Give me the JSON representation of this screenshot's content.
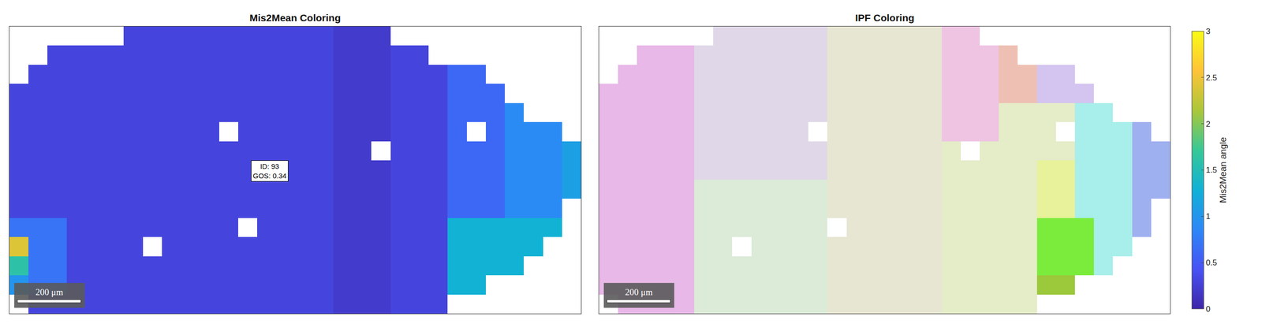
{
  "chart_data": [
    {
      "type": "heatmap",
      "title": "Mis2Mean Coloring",
      "x": [
        30,
        90,
        150,
        210,
        270,
        330,
        390,
        450,
        510,
        570,
        630,
        690,
        750,
        810,
        870,
        930,
        990,
        1050,
        1110,
        1170,
        1230,
        1290,
        1350,
        1410,
        1470,
        1530,
        1590,
        1650,
        1710,
        1770
      ],
      "y": [
        870,
        810,
        750,
        690,
        630,
        570,
        510,
        450,
        390,
        330,
        270,
        210,
        150,
        90,
        30
      ],
      "xlim": [
        0,
        1800
      ],
      "ylim": [
        0,
        900
      ],
      "tick_labels": false,
      "z": [
        [
          null,
          null,
          null,
          null,
          null,
          null,
          0.3,
          0.3,
          0.3,
          0.3,
          0.3,
          0.3,
          0.3,
          0.3,
          0.3,
          0.3,
          0.3,
          0.2,
          0.2,
          0.2,
          null,
          null,
          null,
          null,
          null,
          null,
          null,
          null,
          null,
          null
        ],
        [
          null,
          null,
          0.3,
          0.3,
          0.3,
          0.3,
          0.3,
          0.3,
          0.3,
          0.3,
          0.3,
          0.3,
          0.3,
          0.3,
          0.3,
          0.3,
          0.3,
          0.2,
          0.2,
          0.2,
          0.3,
          0.3,
          null,
          null,
          null,
          null,
          null,
          null,
          null,
          null
        ],
        [
          null,
          0.3,
          0.3,
          0.3,
          0.3,
          0.3,
          0.3,
          0.3,
          0.3,
          0.3,
          0.3,
          0.3,
          0.3,
          0.3,
          0.3,
          0.3,
          0.3,
          0.2,
          0.2,
          0.2,
          0.3,
          0.3,
          0.3,
          0.6,
          0.6,
          null,
          null,
          null,
          null,
          null
        ],
        [
          0.3,
          0.3,
          0.3,
          0.3,
          0.3,
          0.3,
          0.3,
          0.3,
          0.3,
          0.3,
          0.3,
          0.3,
          0.3,
          0.3,
          0.3,
          0.3,
          0.3,
          0.2,
          0.2,
          0.2,
          0.3,
          0.3,
          0.3,
          0.6,
          0.6,
          0.6,
          null,
          null,
          null,
          null
        ],
        [
          0.3,
          0.3,
          0.3,
          0.3,
          0.3,
          0.3,
          0.3,
          0.3,
          0.3,
          0.3,
          0.3,
          0.3,
          0.3,
          0.3,
          0.3,
          0.3,
          0.3,
          0.2,
          0.2,
          0.2,
          0.3,
          0.3,
          0.3,
          0.6,
          0.6,
          0.6,
          0.9,
          null,
          null,
          null
        ],
        [
          0.3,
          0.3,
          0.3,
          0.3,
          0.3,
          0.3,
          0.3,
          0.3,
          0.3,
          0.3,
          0.3,
          null,
          0.3,
          0.3,
          0.3,
          0.3,
          0.3,
          0.2,
          0.2,
          0.2,
          0.3,
          0.3,
          0.3,
          0.6,
          null,
          0.6,
          0.9,
          0.9,
          0.9,
          null
        ],
        [
          0.3,
          0.3,
          0.3,
          0.3,
          0.3,
          0.3,
          0.3,
          0.3,
          0.3,
          0.3,
          0.3,
          0.3,
          0.3,
          0.3,
          0.3,
          0.3,
          0.3,
          0.2,
          0.2,
          null,
          0.3,
          0.3,
          0.3,
          0.6,
          0.6,
          0.6,
          0.9,
          0.9,
          0.9,
          1.1
        ],
        [
          0.3,
          0.3,
          0.3,
          0.3,
          0.3,
          0.3,
          0.3,
          0.3,
          0.3,
          0.3,
          0.3,
          0.3,
          0.3,
          0.3,
          0.3,
          0.3,
          0.3,
          0.2,
          0.2,
          0.2,
          0.3,
          0.3,
          0.3,
          0.6,
          0.6,
          0.6,
          0.9,
          0.9,
          0.9,
          1.1
        ],
        [
          0.3,
          0.3,
          0.3,
          0.3,
          0.3,
          0.3,
          0.3,
          0.3,
          0.3,
          0.3,
          0.3,
          0.3,
          0.3,
          0.3,
          0.3,
          0.3,
          0.3,
          0.2,
          0.2,
          0.2,
          0.3,
          0.3,
          0.3,
          0.6,
          0.6,
          0.6,
          0.9,
          0.9,
          0.9,
          1.1
        ],
        [
          0.3,
          0.3,
          0.3,
          0.3,
          0.3,
          0.3,
          0.3,
          0.3,
          0.3,
          0.3,
          0.3,
          0.3,
          0.3,
          0.3,
          0.3,
          0.3,
          0.3,
          0.2,
          0.2,
          0.2,
          0.3,
          0.3,
          0.3,
          0.6,
          0.6,
          0.6,
          0.9,
          0.9,
          0.9,
          null
        ],
        [
          0.7,
          0.7,
          0.7,
          0.3,
          0.3,
          0.3,
          0.3,
          0.3,
          0.3,
          0.3,
          0.3,
          0.3,
          null,
          0.3,
          0.3,
          0.3,
          0.3,
          0.2,
          0.2,
          0.2,
          0.3,
          0.3,
          0.3,
          1.3,
          1.3,
          1.3,
          1.3,
          1.3,
          1.3,
          null
        ],
        [
          2.4,
          0.7,
          0.7,
          0.3,
          0.3,
          0.3,
          0.3,
          null,
          0.3,
          0.3,
          0.3,
          0.3,
          0.3,
          0.3,
          0.3,
          0.3,
          0.3,
          0.2,
          0.2,
          0.2,
          0.3,
          0.3,
          0.3,
          1.3,
          1.3,
          1.3,
          1.3,
          1.3,
          null,
          null
        ],
        [
          1.6,
          0.7,
          0.7,
          0.3,
          0.3,
          0.3,
          0.3,
          0.3,
          0.3,
          0.3,
          0.3,
          0.3,
          0.3,
          0.3,
          0.3,
          0.3,
          0.3,
          0.2,
          0.2,
          0.2,
          0.3,
          0.3,
          0.3,
          1.3,
          1.3,
          1.3,
          1.3,
          null,
          null,
          null
        ],
        [
          1.0,
          0.7,
          0.7,
          0.3,
          0.3,
          0.3,
          0.3,
          0.3,
          0.3,
          0.3,
          0.3,
          0.3,
          0.3,
          0.3,
          0.3,
          0.3,
          0.3,
          0.2,
          0.2,
          0.2,
          0.3,
          0.3,
          0.3,
          1.3,
          1.3,
          null,
          null,
          null,
          null,
          null
        ],
        [
          null,
          0.3,
          0.3,
          0.3,
          0.3,
          0.3,
          0.3,
          0.3,
          0.3,
          0.3,
          0.3,
          0.3,
          0.3,
          0.3,
          0.3,
          0.3,
          0.3,
          0.2,
          0.2,
          0.2,
          0.3,
          0.3,
          0.3,
          null,
          null,
          null,
          null,
          null,
          null,
          null
        ]
      ],
      "colorbar": {
        "title": "Mis2Mean angle",
        "range": [
          0,
          3
        ],
        "ticks": [
          0,
          0.5,
          1,
          1.5,
          2,
          2.5,
          3
        ]
      },
      "annotation": [
        "ID: 93",
        "GOS: 0.34"
      ],
      "scale_bar": {
        "length": 200,
        "label": "200 μm"
      }
    },
    {
      "type": "heatmap",
      "title": "IPF Coloring",
      "x": [
        30,
        90,
        150,
        210,
        270,
        330,
        390,
        450,
        510,
        570,
        630,
        690,
        750,
        810,
        870,
        930,
        990,
        1050,
        1110,
        1170,
        1230,
        1290,
        1350,
        1410,
        1470,
        1530,
        1590,
        1650,
        1710,
        1770
      ],
      "y": [
        870,
        810,
        750,
        690,
        630,
        570,
        510,
        450,
        390,
        330,
        270,
        210,
        150,
        90,
        30
      ],
      "xlim": [
        0,
        1800
      ],
      "ylim": [
        0,
        900
      ],
      "tick_labels": false,
      "palette": [
        "#e8b8e8",
        "#e0d8e8",
        "#dcead8",
        "#e6e6d2",
        "#eec4e2",
        "#eec0b4",
        "#d4c4f0",
        "#9fb0f0",
        "#a8eeea",
        "#e8f29a",
        "#7cec3c",
        "#9cc83c",
        "#e4ecc8"
      ],
      "z": [
        [
          null,
          null,
          null,
          null,
          null,
          null,
          1,
          1,
          1,
          1,
          1,
          1,
          3,
          3,
          3,
          3,
          3,
          3,
          4,
          4,
          null,
          null,
          null,
          null,
          null,
          null,
          null,
          null,
          null,
          null
        ],
        [
          null,
          null,
          0,
          0,
          0,
          1,
          1,
          1,
          1,
          1,
          1,
          1,
          3,
          3,
          3,
          3,
          3,
          3,
          4,
          4,
          4,
          5,
          null,
          null,
          null,
          null,
          null,
          null,
          null,
          null
        ],
        [
          null,
          0,
          0,
          0,
          0,
          1,
          1,
          1,
          1,
          1,
          1,
          1,
          3,
          3,
          3,
          3,
          3,
          3,
          4,
          4,
          4,
          5,
          5,
          6,
          6,
          null,
          null,
          null,
          null,
          null
        ],
        [
          0,
          0,
          0,
          0,
          0,
          1,
          1,
          1,
          1,
          1,
          1,
          1,
          3,
          3,
          3,
          3,
          3,
          3,
          4,
          4,
          4,
          5,
          5,
          6,
          6,
          6,
          null,
          null,
          null,
          null
        ],
        [
          0,
          0,
          0,
          0,
          0,
          1,
          1,
          1,
          1,
          1,
          1,
          1,
          3,
          3,
          3,
          3,
          3,
          3,
          4,
          4,
          4,
          12,
          12,
          12,
          12,
          8,
          8,
          null,
          null,
          null
        ],
        [
          0,
          0,
          0,
          0,
          0,
          1,
          1,
          1,
          1,
          1,
          1,
          null,
          3,
          3,
          3,
          3,
          3,
          3,
          4,
          4,
          4,
          12,
          12,
          12,
          null,
          8,
          8,
          8,
          7,
          null
        ],
        [
          0,
          0,
          0,
          0,
          0,
          1,
          1,
          1,
          1,
          1,
          1,
          1,
          3,
          3,
          3,
          3,
          3,
          3,
          12,
          null,
          12,
          12,
          12,
          12,
          12,
          8,
          8,
          8,
          7,
          7
        ],
        [
          0,
          0,
          0,
          0,
          0,
          1,
          1,
          1,
          1,
          1,
          1,
          1,
          3,
          3,
          3,
          3,
          3,
          3,
          12,
          12,
          12,
          12,
          12,
          9,
          9,
          8,
          8,
          8,
          7,
          7
        ],
        [
          0,
          0,
          0,
          0,
          0,
          2,
          2,
          2,
          2,
          2,
          2,
          2,
          3,
          3,
          3,
          3,
          3,
          3,
          12,
          12,
          12,
          12,
          12,
          9,
          9,
          8,
          8,
          8,
          7,
          7
        ],
        [
          0,
          0,
          0,
          0,
          0,
          2,
          2,
          2,
          2,
          2,
          2,
          2,
          3,
          3,
          3,
          3,
          3,
          3,
          12,
          12,
          12,
          12,
          12,
          9,
          9,
          8,
          8,
          8,
          7,
          null
        ],
        [
          0,
          0,
          0,
          0,
          0,
          2,
          2,
          2,
          2,
          2,
          2,
          2,
          null,
          3,
          3,
          3,
          3,
          3,
          12,
          12,
          12,
          12,
          12,
          10,
          10,
          10,
          8,
          8,
          7,
          null
        ],
        [
          0,
          0,
          0,
          0,
          0,
          2,
          2,
          null,
          2,
          2,
          2,
          2,
          3,
          3,
          3,
          3,
          3,
          3,
          12,
          12,
          12,
          12,
          12,
          10,
          10,
          10,
          8,
          8,
          null,
          null
        ],
        [
          0,
          0,
          0,
          0,
          0,
          2,
          2,
          2,
          2,
          2,
          2,
          2,
          3,
          3,
          3,
          3,
          3,
          3,
          12,
          12,
          12,
          12,
          12,
          10,
          10,
          10,
          8,
          null,
          null,
          null
        ],
        [
          0,
          0,
          0,
          0,
          0,
          2,
          2,
          2,
          2,
          2,
          2,
          2,
          3,
          3,
          3,
          3,
          3,
          3,
          12,
          12,
          12,
          12,
          12,
          11,
          11,
          null,
          null,
          null,
          null,
          null
        ],
        [
          null,
          0,
          0,
          0,
          0,
          2,
          2,
          2,
          2,
          2,
          2,
          2,
          3,
          3,
          3,
          3,
          3,
          3,
          12,
          12,
          12,
          12,
          12,
          null,
          null,
          null,
          null,
          null,
          null,
          null
        ]
      ],
      "scale_bar": {
        "length": 200,
        "label": "200 μm"
      }
    }
  ]
}
